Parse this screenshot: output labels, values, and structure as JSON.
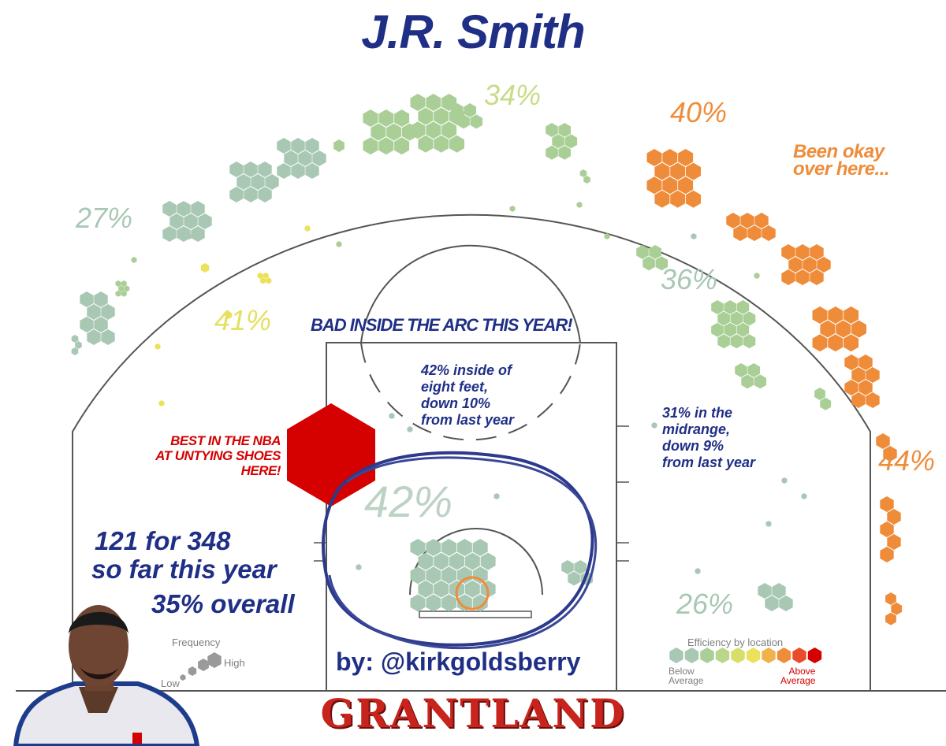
{
  "title": "J.R. Smith",
  "zone_labels": {
    "left_corner_three": "27%",
    "left_wing_three": "34%",
    "right_wing_three": "40%",
    "left_midrange": "41%",
    "right_midrange": "36%",
    "right_corner_three": "44%",
    "paint": "42%",
    "right_baseline_midrange": "26%"
  },
  "annotations": {
    "right_wing_note": "Been okay\nover here...",
    "arc_headline": "BAD INSIDE THE ARC THIS YEAR!",
    "paint_note": "42% inside of\neight feet,\ndown 10%\nfrom last year",
    "midrange_note": "31% in the\nmidrange,\ndown 9%\nfrom last year",
    "shoes_note": "BEST IN THE NBA\nAT UNTYING SHOES\nHERE!",
    "totals_line1": "121 for 348",
    "totals_line2": "so far this year",
    "totals_line3": "35% overall",
    "byline": "by: @kirkgoldsberry",
    "brand": "GRANTLAND"
  },
  "legend": {
    "frequency_title": "Frequency",
    "frequency_high": "High",
    "frequency_low": "Low",
    "efficiency_title": "Efficiency by location",
    "efficiency_low": "Below\nAverage",
    "efficiency_high": "Above\nAverage",
    "efficiency_colors": [
      "#a8c8b4",
      "#a8c8b4",
      "#a9cf96",
      "#b9d68a",
      "#d6df6a",
      "#ece15a",
      "#f0b24a",
      "#ef8c3a",
      "#e84c2a",
      "#d50000"
    ]
  },
  "colors": {
    "title_blue": "#1f2f86",
    "below_avg": "#a8c8b4",
    "green": "#a9cf96",
    "yellow": "#ece15a",
    "orange": "#ef8c3a",
    "red": "#d50000"
  },
  "chart_data": {
    "type": "heatmap",
    "subject": "J.R. Smith",
    "shots_made": 121,
    "shots_attempted": 348,
    "overall_fg_pct": 35,
    "zones": [
      {
        "zone": "Left corner three",
        "fg_pct": 27
      },
      {
        "zone": "Left wing three",
        "fg_pct": 34
      },
      {
        "zone": "Right wing three",
        "fg_pct": 40
      },
      {
        "zone": "Left midrange",
        "fg_pct": 41
      },
      {
        "zone": "Right midrange",
        "fg_pct": 36
      },
      {
        "zone": "Right corner three",
        "fg_pct": 44
      },
      {
        "zone": "Inside eight feet",
        "fg_pct": 42
      },
      {
        "zone": "Right baseline midrange",
        "fg_pct": 26
      }
    ]
  }
}
